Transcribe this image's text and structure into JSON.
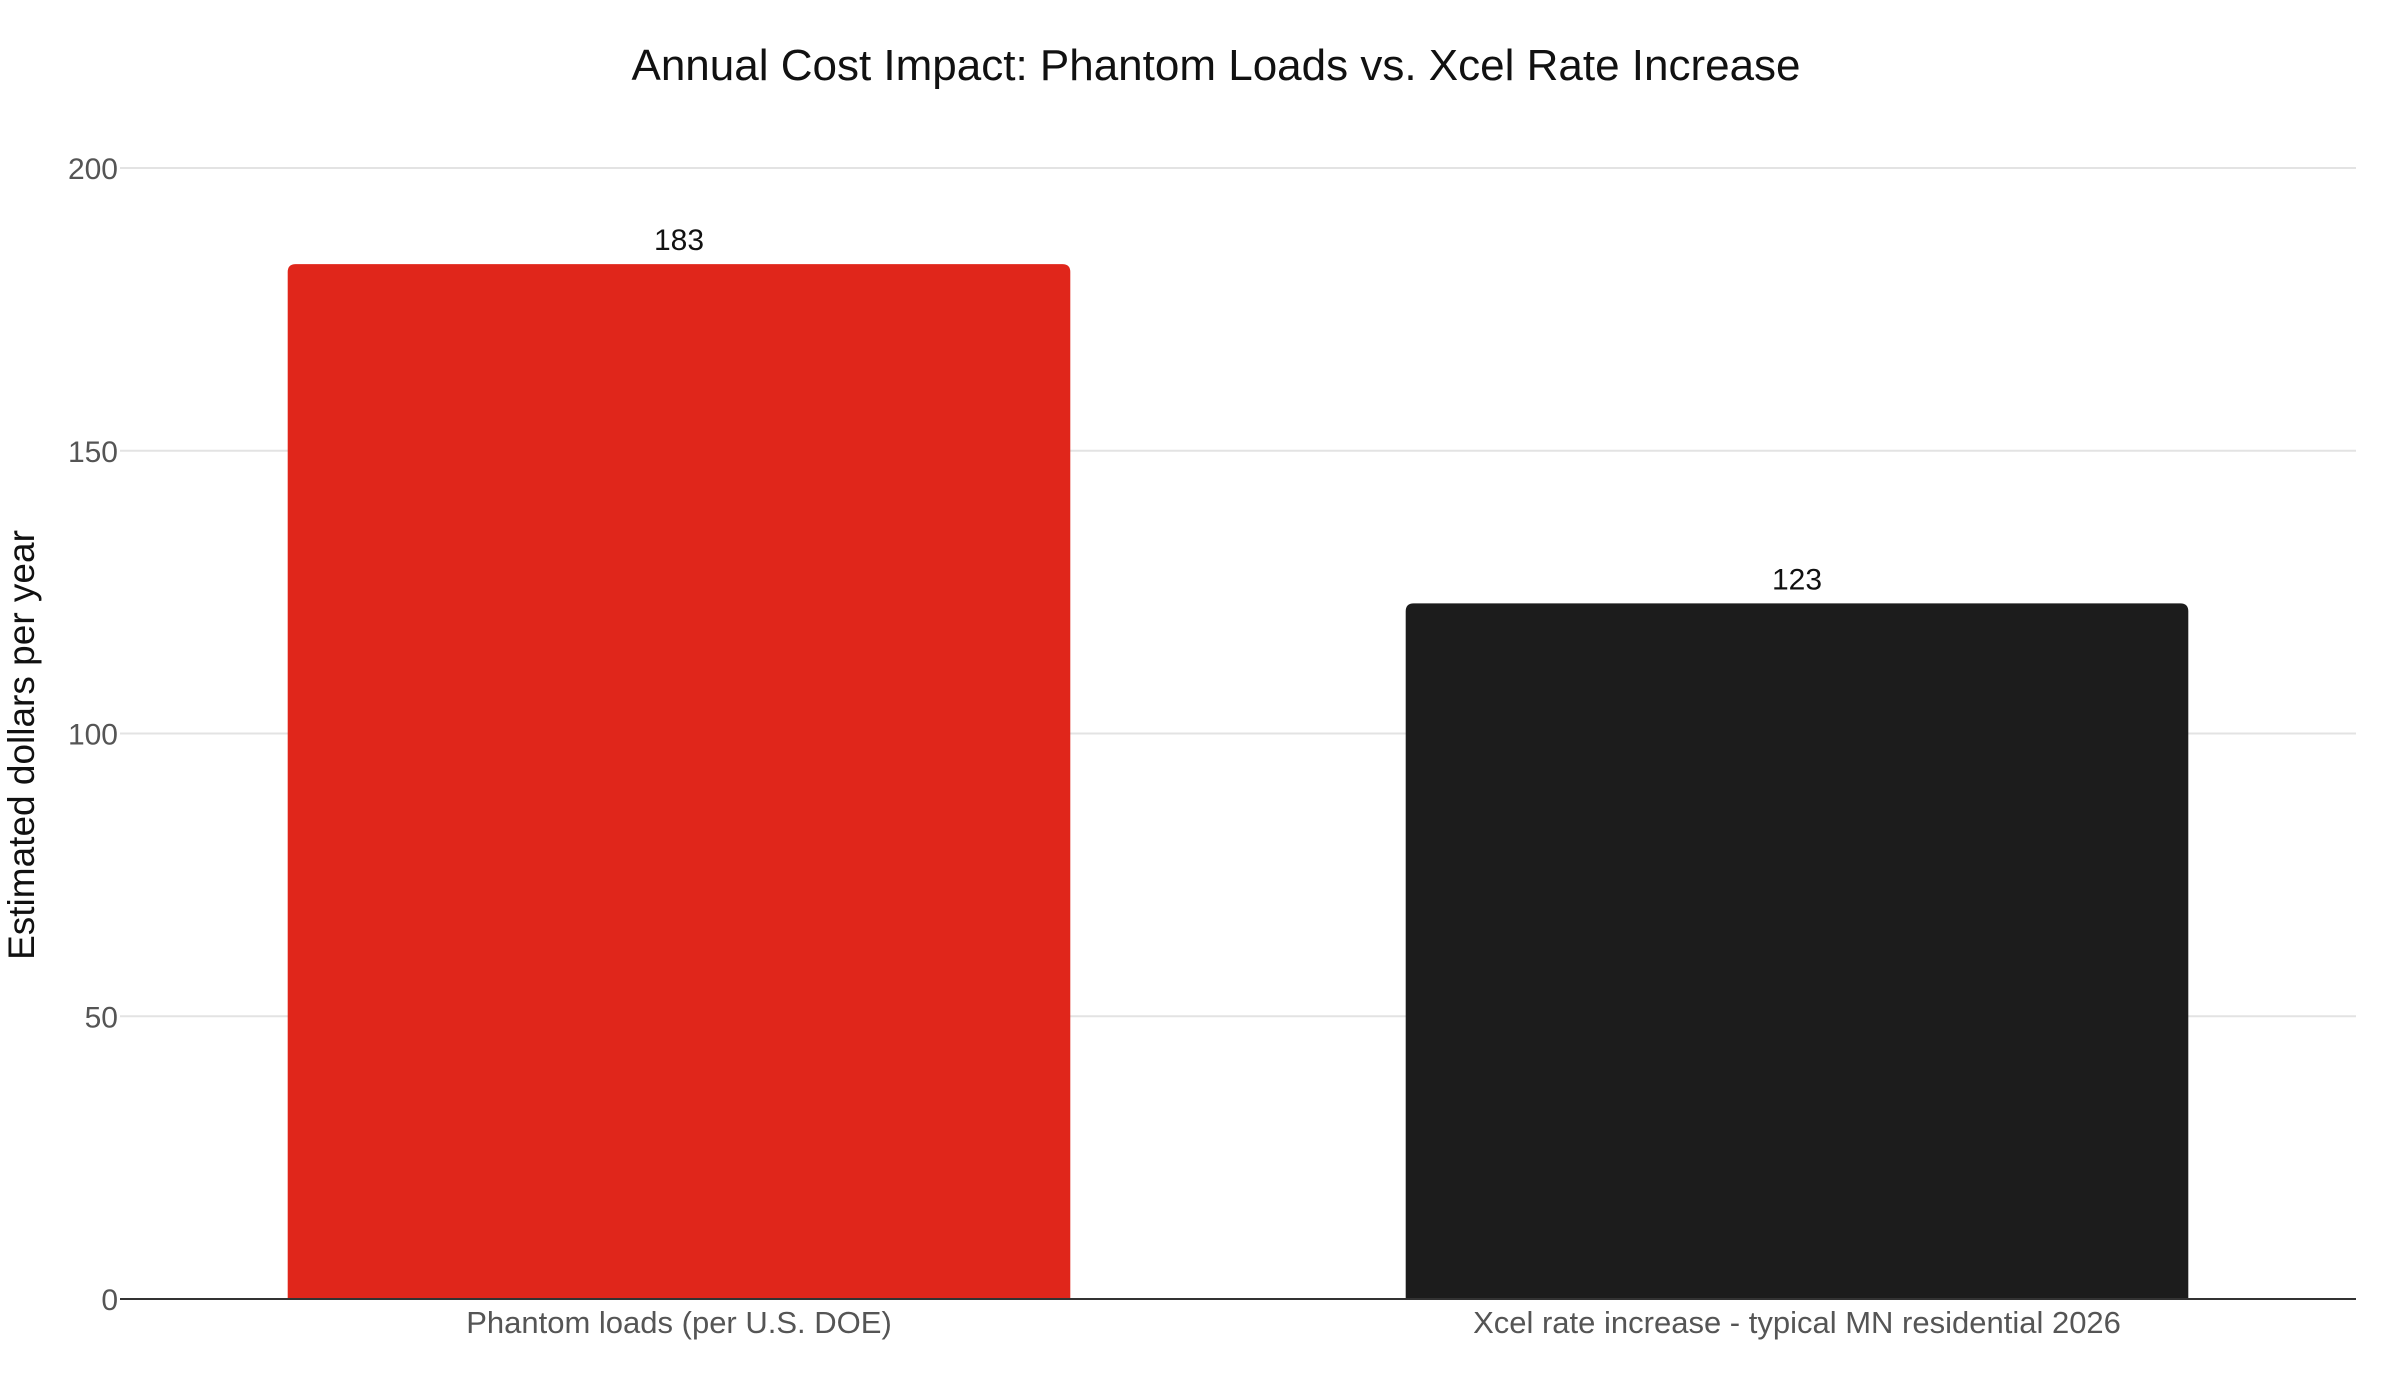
{
  "chart_data": {
    "type": "bar",
    "title": "Annual Cost Impact: Phantom Loads vs. Xcel Rate Increase",
    "xlabel": "",
    "ylabel": "Estimated dollars per year",
    "categories": [
      "Phantom loads (per U.S. DOE)",
      "Xcel rate increase - typical MN residential 2026"
    ],
    "values": [
      183,
      123
    ],
    "colors": [
      "#e0261b",
      "#1c1c1c"
    ],
    "data_labels": [
      "183",
      "123"
    ],
    "ylim": [
      0,
      200
    ],
    "yticks": [
      0,
      50,
      100,
      150,
      200
    ],
    "grid": true,
    "legend": "none"
  }
}
